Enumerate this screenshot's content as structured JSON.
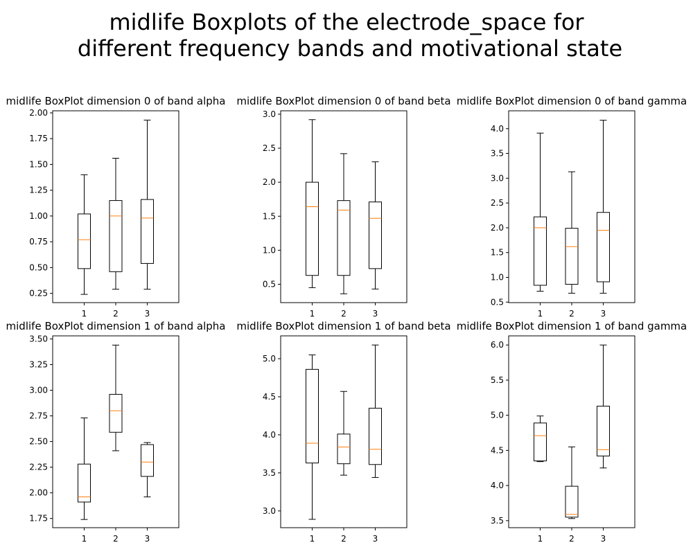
{
  "figure": {
    "title_line1": "midlife Boxplots of the electrode_space for",
    "title_line2": "different frequency bands and motivational state"
  },
  "chart_data": [
    {
      "type": "box",
      "title": "midlife BoxPlot dimension 0 of band alpha",
      "categories": [
        "1",
        "2",
        "3"
      ],
      "ylim": [
        0.16,
        2.02
      ],
      "yticks": [
        0.25,
        0.5,
        0.75,
        1.0,
        1.25,
        1.5,
        1.75,
        2.0
      ],
      "ytick_labels": [
        "0.25",
        "0.50",
        "0.75",
        "1.00",
        "1.25",
        "1.50",
        "1.75",
        "2.00"
      ],
      "boxes": [
        {
          "whislo": 0.24,
          "q1": 0.49,
          "med": 0.77,
          "q3": 1.02,
          "whishi": 1.4
        },
        {
          "whislo": 0.29,
          "q1": 0.46,
          "med": 1.0,
          "q3": 1.15,
          "whishi": 1.56
        },
        {
          "whislo": 0.29,
          "q1": 0.54,
          "med": 0.98,
          "q3": 1.16,
          "whishi": 1.93
        }
      ]
    },
    {
      "type": "box",
      "title": "midlife BoxPlot dimension 0 of band beta",
      "categories": [
        "1",
        "2",
        "3"
      ],
      "ylim": [
        0.23,
        3.05
      ],
      "yticks": [
        0.5,
        1.0,
        1.5,
        2.0,
        2.5,
        3.0
      ],
      "ytick_labels": [
        "0.5",
        "1.0",
        "1.5",
        "2.0",
        "2.5",
        "3.0"
      ],
      "boxes": [
        {
          "whislo": 0.45,
          "q1": 0.63,
          "med": 1.64,
          "q3": 2.0,
          "whishi": 2.92
        },
        {
          "whislo": 0.36,
          "q1": 0.63,
          "med": 1.59,
          "q3": 1.73,
          "whishi": 2.42
        },
        {
          "whislo": 0.43,
          "q1": 0.73,
          "med": 1.47,
          "q3": 1.71,
          "whishi": 2.3
        }
      ]
    },
    {
      "type": "box",
      "title": "midlife BoxPlot dimension 0 of band gamma",
      "categories": [
        "1",
        "2",
        "3"
      ],
      "ylim": [
        0.49,
        4.36
      ],
      "yticks": [
        0.5,
        1.0,
        1.5,
        2.0,
        2.5,
        3.0,
        3.5,
        4.0
      ],
      "ytick_labels": [
        "0.5",
        "1.0",
        "1.5",
        "2.0",
        "2.5",
        "3.0",
        "3.5",
        "4.0"
      ],
      "boxes": [
        {
          "whislo": 0.72,
          "q1": 0.84,
          "med": 2.0,
          "q3": 2.22,
          "whishi": 3.91
        },
        {
          "whislo": 0.68,
          "q1": 0.86,
          "med": 1.62,
          "q3": 1.99,
          "whishi": 3.13
        },
        {
          "whislo": 0.68,
          "q1": 0.91,
          "med": 1.95,
          "q3": 2.31,
          "whishi": 4.17
        }
      ]
    },
    {
      "type": "box",
      "title": "midlife BoxPlot dimension 1 of band alpha",
      "categories": [
        "1",
        "2",
        "3"
      ],
      "ylim": [
        1.66,
        3.53
      ],
      "yticks": [
        1.75,
        2.0,
        2.25,
        2.5,
        2.75,
        3.0,
        3.25,
        3.5
      ],
      "ytick_labels": [
        "1.75",
        "2.00",
        "2.25",
        "2.50",
        "2.75",
        "3.00",
        "3.25",
        "3.50"
      ],
      "boxes": [
        {
          "whislo": 1.74,
          "q1": 1.91,
          "med": 1.96,
          "q3": 2.28,
          "whishi": 2.73
        },
        {
          "whislo": 2.41,
          "q1": 2.59,
          "med": 2.8,
          "q3": 2.96,
          "whishi": 3.44
        },
        {
          "whislo": 1.96,
          "q1": 2.16,
          "med": 2.3,
          "q3": 2.47,
          "whishi": 2.49
        }
      ]
    },
    {
      "type": "box",
      "title": "midlife BoxPlot dimension 1 of band beta",
      "categories": [
        "1",
        "2",
        "3"
      ],
      "ylim": [
        2.78,
        5.3
      ],
      "yticks": [
        3.0,
        3.5,
        4.0,
        4.5,
        5.0
      ],
      "ytick_labels": [
        "3.0",
        "3.5",
        "4.0",
        "4.5",
        "5.0"
      ],
      "boxes": [
        {
          "whislo": 2.89,
          "q1": 3.63,
          "med": 3.89,
          "q3": 4.86,
          "whishi": 5.05
        },
        {
          "whislo": 3.47,
          "q1": 3.62,
          "med": 3.84,
          "q3": 4.01,
          "whishi": 4.57
        },
        {
          "whislo": 3.44,
          "q1": 3.61,
          "med": 3.81,
          "q3": 4.35,
          "whishi": 5.18
        }
      ]
    },
    {
      "type": "box",
      "title": "midlife BoxPlot dimension 1 of band gamma",
      "categories": [
        "1",
        "2",
        "3"
      ],
      "ylim": [
        3.4,
        6.13
      ],
      "yticks": [
        3.5,
        4.0,
        4.5,
        5.0,
        5.5,
        6.0
      ],
      "ytick_labels": [
        "3.5",
        "4.0",
        "4.5",
        "5.0",
        "5.5",
        "6.0"
      ],
      "boxes": [
        {
          "whislo": 4.34,
          "q1": 4.35,
          "med": 4.71,
          "q3": 4.89,
          "whishi": 4.99
        },
        {
          "whislo": 3.53,
          "q1": 3.55,
          "med": 3.59,
          "q3": 3.99,
          "whishi": 4.55
        },
        {
          "whislo": 4.25,
          "q1": 4.42,
          "med": 4.51,
          "q3": 5.13,
          "whishi": 6.0
        }
      ]
    }
  ],
  "colors": {
    "median": "#ff7f0e",
    "box": "#000000",
    "axes": "#000000",
    "background": "#ffffff"
  }
}
